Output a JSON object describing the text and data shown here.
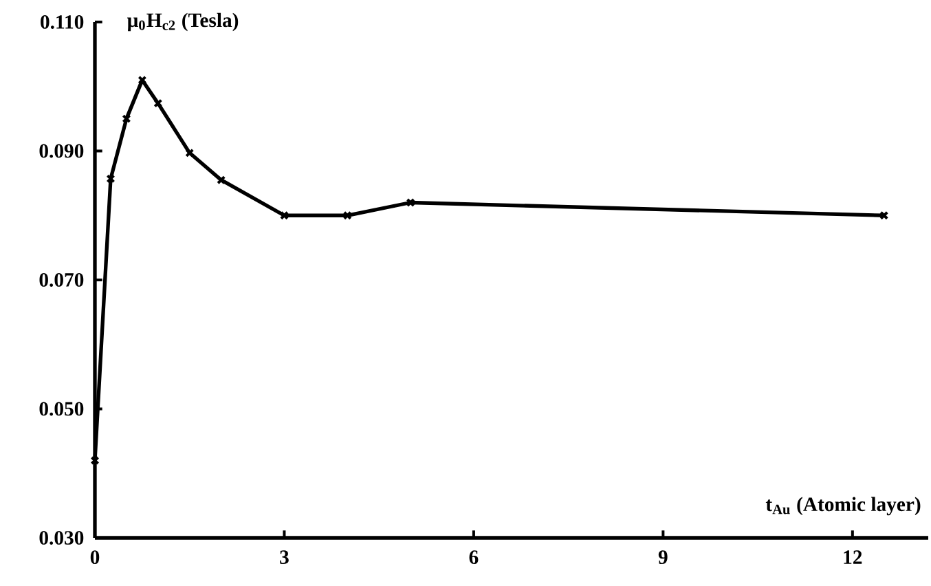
{
  "chart_data": {
    "type": "line",
    "xlabel": "t$_{Au}$ (Atomic layer)",
    "ylabel": "μ$_{0}$H$_{c2}$ (Tesla)",
    "x": [
      0,
      0.25,
      0.5,
      0.75,
      1,
      1.5,
      2,
      3,
      4,
      5,
      12.5
    ],
    "series": [
      {
        "color": "#000000",
        "values": [
          0.042,
          0.0857,
          0.095,
          0.101,
          0.0974,
          0.0897,
          0.0855,
          0.08,
          0.08,
          0.082,
          0.08
        ]
      }
    ],
    "xlim": [
      0,
      13.2
    ],
    "ylim": [
      0.03,
      0.11
    ],
    "xticks": [
      0,
      3,
      6,
      9,
      12
    ],
    "yticks": [
      {
        "value": 0.03,
        "label": "0.030"
      },
      {
        "value": 0.05,
        "label": "0.050"
      },
      {
        "value": 0.07,
        "label": "0.070"
      },
      {
        "value": 0.09,
        "label": "0.090"
      },
      {
        "value": 0.11,
        "label": "0.110"
      }
    ],
    "marker": "cross",
    "line_style": "solid"
  }
}
